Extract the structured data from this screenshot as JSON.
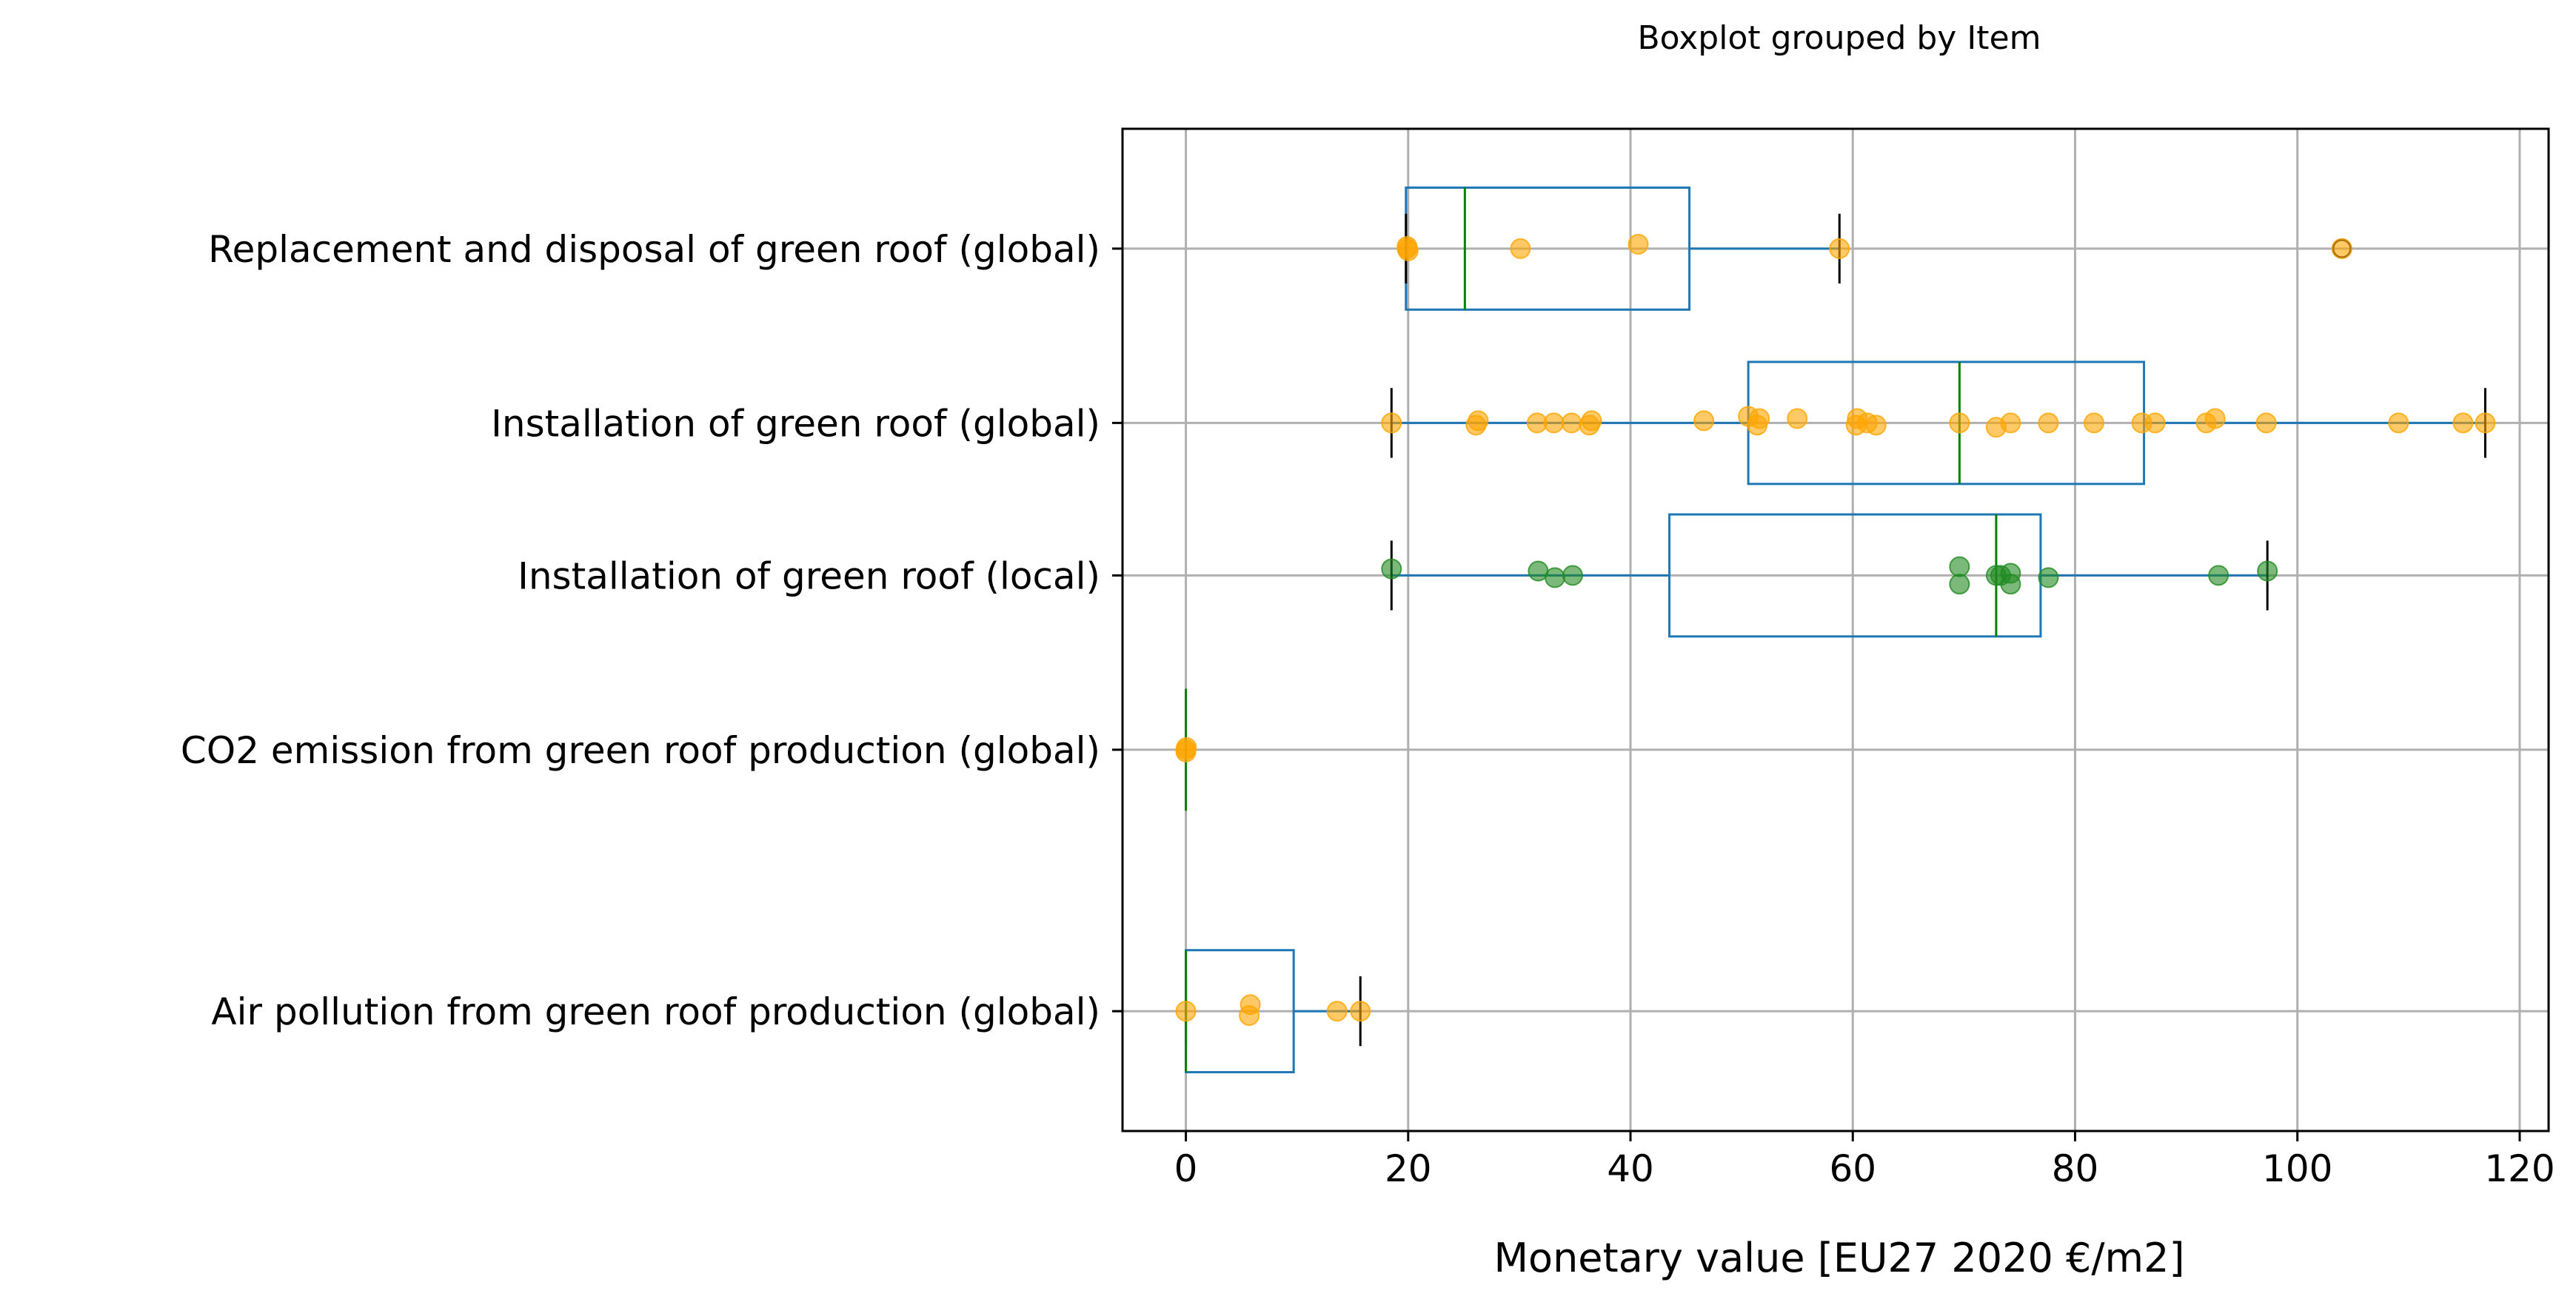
{
  "chart_data": {
    "type": "boxplot",
    "orientation": "horizontal",
    "title": "Boxplot grouped by Item",
    "xlabel": "Monetary value [EU27 2020 €/m2]",
    "ylabel": "",
    "xlim": [
      -5.7,
      122.6
    ],
    "x_ticks": [
      0,
      20,
      40,
      60,
      80,
      100,
      120
    ],
    "x_tick_labels": [
      "0",
      "20",
      "40",
      "60",
      "80",
      "100",
      "120"
    ],
    "grid": true,
    "colors": {
      "box": "#1f77b4",
      "median": "#008000",
      "whisker_cap": "#000000",
      "points_global": "#FFA500",
      "points_local": "#228B22",
      "grid": "#b0b0b0"
    },
    "categories": [
      {
        "label": "Replacement and disposal of green roof (global)",
        "position": 1.0,
        "box": {
          "q1": 19.8,
          "median": 25.1,
          "q3": 45.3,
          "whisker_low": 19.8,
          "whisker_high": 58.8
        },
        "outliers": [
          104.0
        ],
        "point_color": "#FFA500",
        "points": [
          {
            "x": 19.9,
            "y": 0.0
          },
          {
            "x": 20.0,
            "y": 0.01
          },
          {
            "x": 19.9,
            "y": -0.01
          },
          {
            "x": 30.1,
            "y": 0.0
          },
          {
            "x": 40.7,
            "y": -0.02
          },
          {
            "x": 58.8,
            "y": 0.0
          },
          {
            "x": 104.0,
            "y": 0.0
          }
        ]
      },
      {
        "label": "Installation of green roof (global)",
        "position": 1.8,
        "box": {
          "q1": 50.6,
          "median": 69.6,
          "q3": 86.2,
          "whisker_low": 18.5,
          "whisker_high": 116.9
        },
        "outliers": [],
        "point_color": "#FFA500",
        "points": [
          {
            "x": 18.5,
            "y": 0.0
          },
          {
            "x": 26.1,
            "y": 0.01
          },
          {
            "x": 26.3,
            "y": -0.01
          },
          {
            "x": 31.6,
            "y": 0.0
          },
          {
            "x": 33.1,
            "y": 0.0
          },
          {
            "x": 34.7,
            "y": 0.0
          },
          {
            "x": 36.3,
            "y": 0.01
          },
          {
            "x": 36.5,
            "y": -0.01
          },
          {
            "x": 46.6,
            "y": -0.01
          },
          {
            "x": 50.6,
            "y": -0.03
          },
          {
            "x": 51.4,
            "y": 0.01
          },
          {
            "x": 51.6,
            "y": -0.02
          },
          {
            "x": 55.0,
            "y": -0.02
          },
          {
            "x": 60.3,
            "y": 0.01
          },
          {
            "x": 60.4,
            "y": -0.02
          },
          {
            "x": 61.3,
            "y": 0.0
          },
          {
            "x": 62.1,
            "y": 0.01
          },
          {
            "x": 69.6,
            "y": 0.0
          },
          {
            "x": 72.9,
            "y": 0.02
          },
          {
            "x": 74.2,
            "y": 0.0
          },
          {
            "x": 77.6,
            "y": 0.0
          },
          {
            "x": 81.7,
            "y": 0.0
          },
          {
            "x": 86.0,
            "y": 0.0
          },
          {
            "x": 87.2,
            "y": 0.0
          },
          {
            "x": 91.8,
            "y": 0.0
          },
          {
            "x": 92.6,
            "y": -0.02
          },
          {
            "x": 97.2,
            "y": 0.0
          },
          {
            "x": 109.1,
            "y": 0.0
          },
          {
            "x": 114.9,
            "y": 0.0
          },
          {
            "x": 116.9,
            "y": 0.0
          }
        ]
      },
      {
        "label": "Installation of green roof (local)",
        "position": 2.5,
        "box": {
          "q1": 43.5,
          "median": 72.9,
          "q3": 76.9,
          "whisker_low": 18.5,
          "whisker_high": 97.3
        },
        "outliers": [],
        "point_color": "#228B22",
        "points": [
          {
            "x": 18.5,
            "y": -0.03
          },
          {
            "x": 31.7,
            "y": -0.02
          },
          {
            "x": 33.2,
            "y": 0.01
          },
          {
            "x": 34.8,
            "y": 0.0
          },
          {
            "x": 69.6,
            "y": 0.04
          },
          {
            "x": 69.6,
            "y": -0.04
          },
          {
            "x": 72.9,
            "y": 0.0
          },
          {
            "x": 73.3,
            "y": 0.0
          },
          {
            "x": 74.2,
            "y": 0.04
          },
          {
            "x": 74.2,
            "y": -0.01
          },
          {
            "x": 77.6,
            "y": 0.01
          },
          {
            "x": 92.9,
            "y": 0.0
          },
          {
            "x": 97.3,
            "y": -0.02
          }
        ]
      },
      {
        "label": "CO2 emission from green roof production (global)",
        "position": 3.3,
        "box": {
          "q1": 0.0,
          "median": 0.0,
          "q3": 0.0,
          "whisker_low": 0.0,
          "whisker_high": 0.0
        },
        "outliers": [],
        "point_color": "#FFA500",
        "points": [
          {
            "x": 0.0,
            "y": 0.0
          },
          {
            "x": 0.0,
            "y": 0.01
          },
          {
            "x": 0.05,
            "y": -0.01
          }
        ]
      },
      {
        "label": "Air pollution from green roof production (global)",
        "position": 4.5,
        "box": {
          "q1": 0.0,
          "median": 0.0,
          "q3": 9.7,
          "whisker_low": 0.0,
          "whisker_high": 15.7
        },
        "outliers": [],
        "point_color": "#FFA500",
        "points": [
          {
            "x": 0.0,
            "y": 0.0
          },
          {
            "x": 5.7,
            "y": 0.02
          },
          {
            "x": 5.8,
            "y": -0.03
          },
          {
            "x": 13.6,
            "y": 0.0
          },
          {
            "x": 15.7,
            "y": 0.0
          }
        ]
      }
    ]
  }
}
